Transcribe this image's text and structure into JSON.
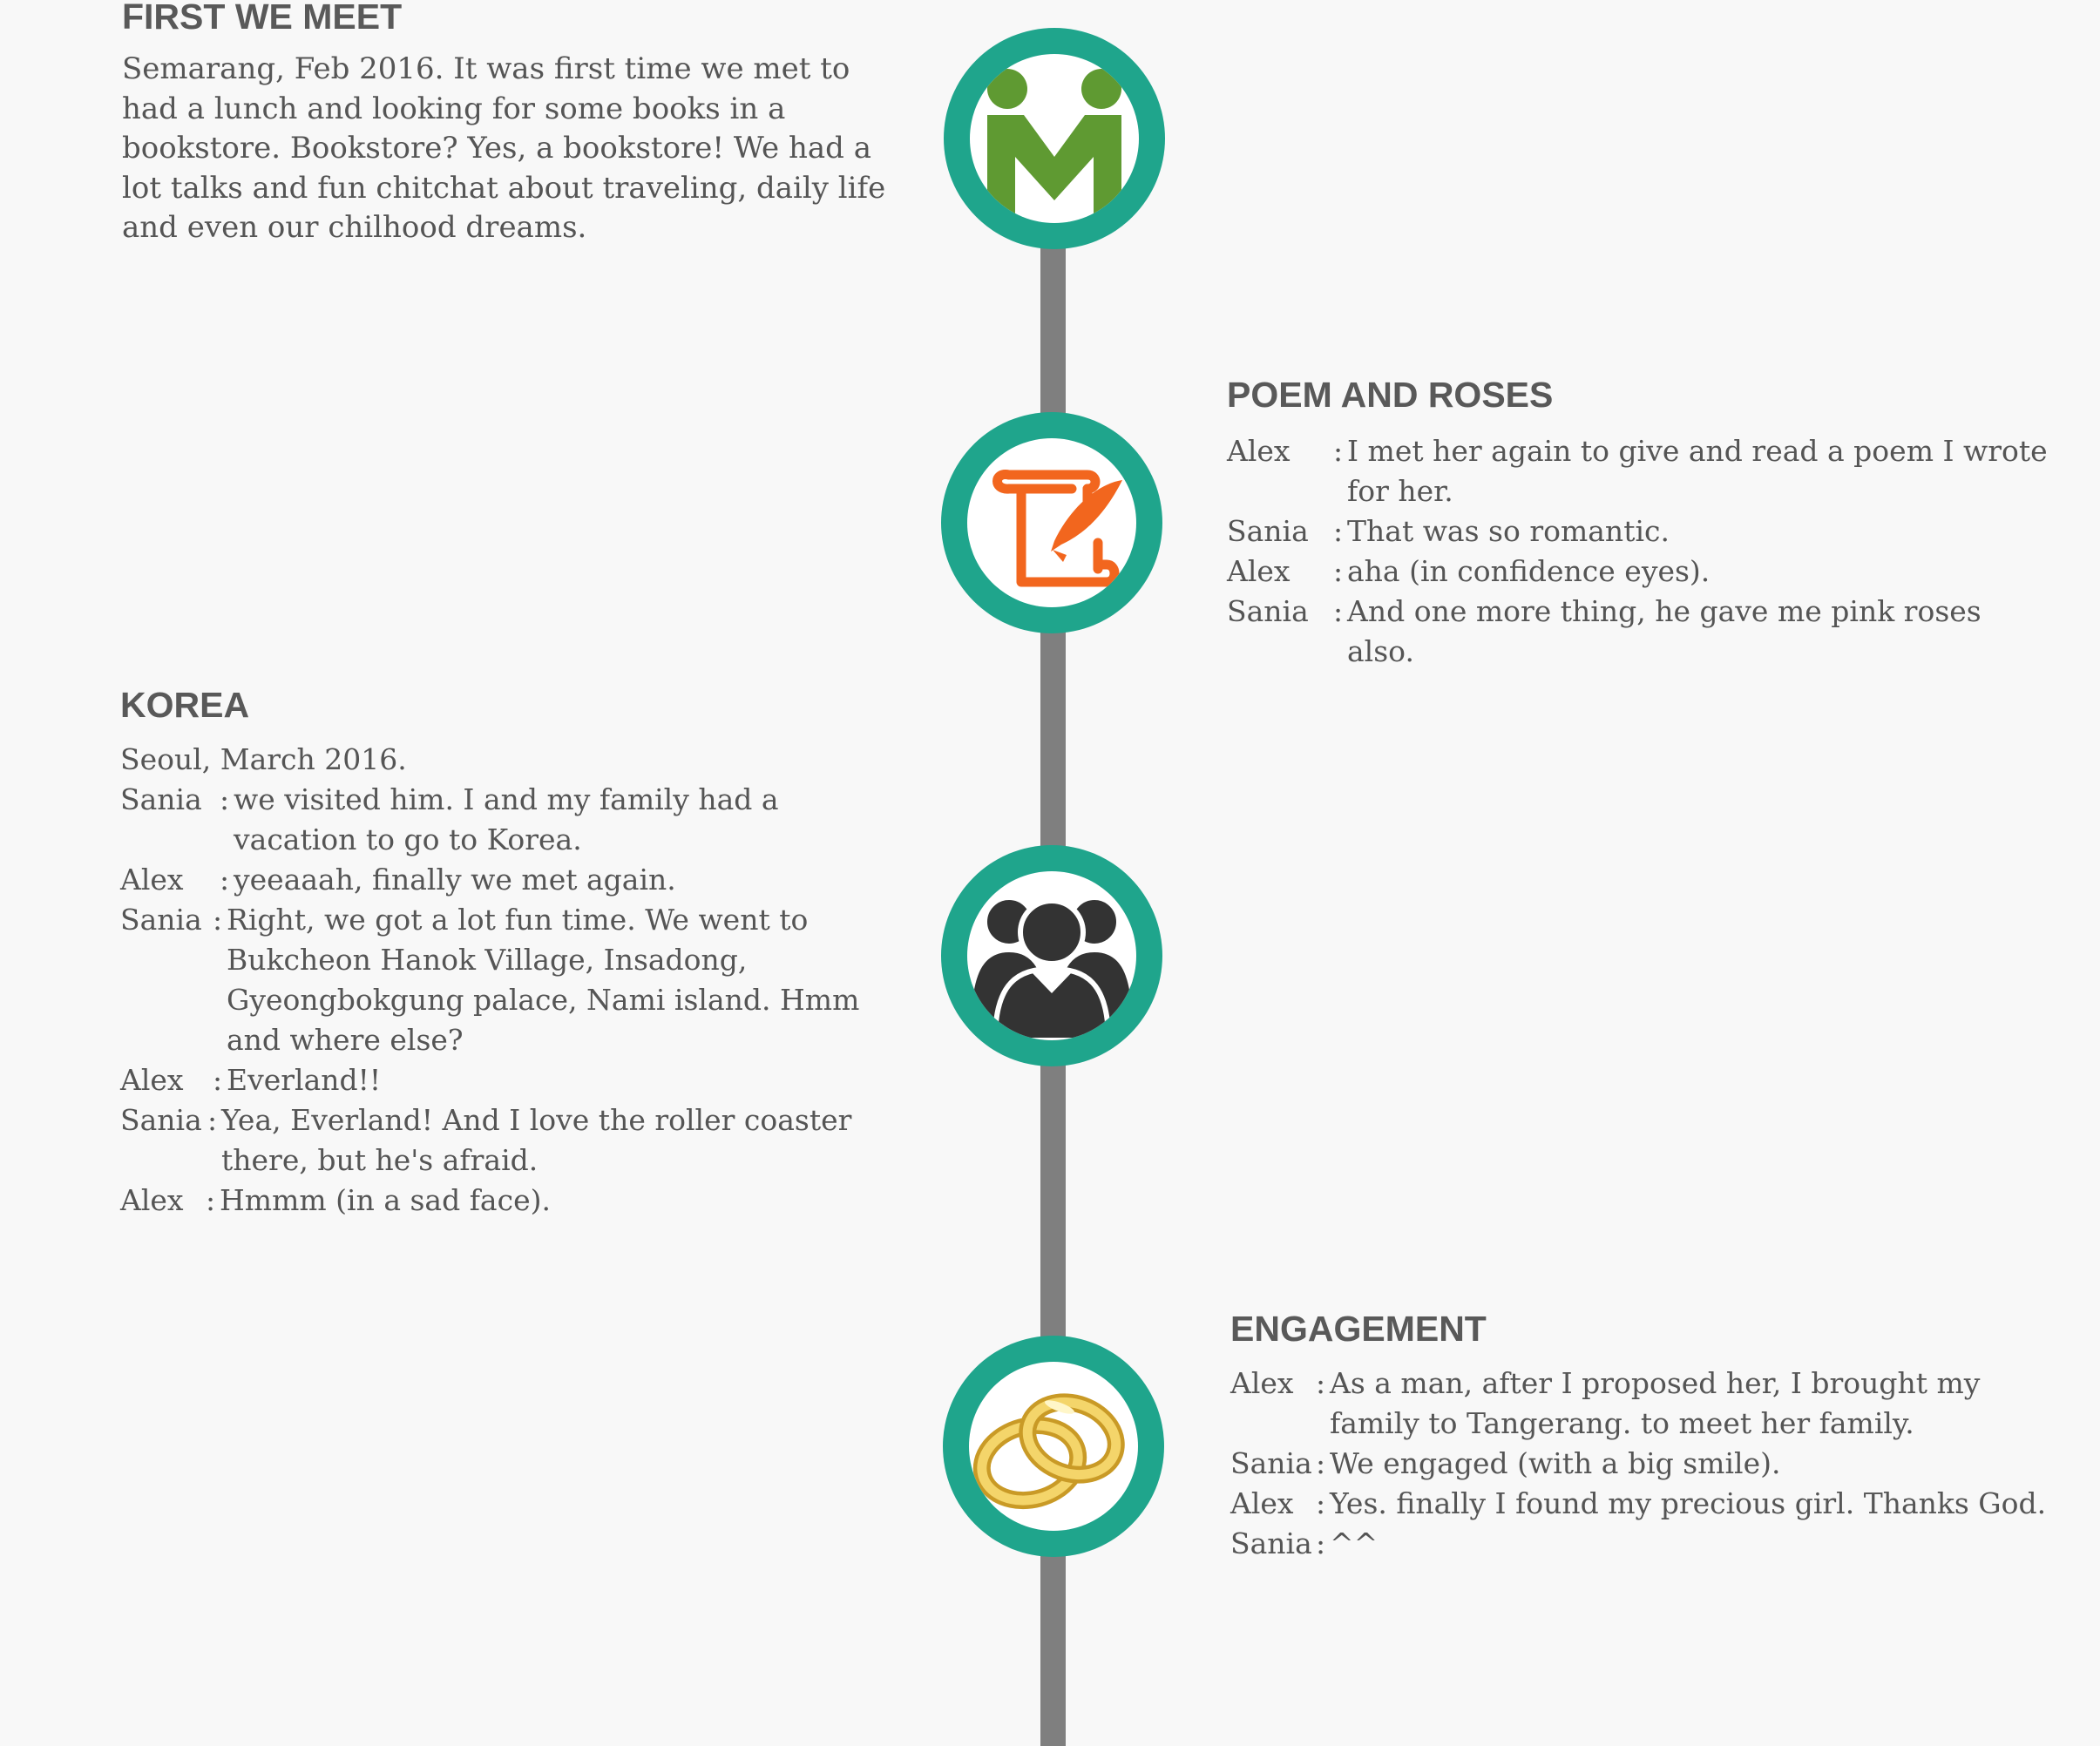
{
  "colors": {
    "background": "#f8f8f8",
    "teal": "#1fa58c",
    "line": "#7f7f7f",
    "green": "#5f9a32",
    "orange": "#f2661e",
    "dark": "#333333",
    "gold": "#e8c14c",
    "heading": "#595959",
    "body_text": "#555555"
  },
  "sections": {
    "first": {
      "icon": "meeting-people-icon",
      "title": "FIRST WE MEET",
      "text": "Semarang, Feb 2016. It was first time we met to had a lunch and looking for some books in a bookstore. Bookstore? Yes, a bookstore! We had a lot talks and fun chitchat about traveling, daily life and even our chilhood dreams."
    },
    "poem": {
      "icon": "scroll-quill-icon",
      "title": "POEM AND ROSES",
      "lines": [
        {
          "speaker": "Alex",
          "text": "I met her again to give and read a poem I wrote for her."
        },
        {
          "speaker": "Sania",
          "text": "That was so romantic."
        },
        {
          "speaker": "Alex",
          "text": "aha (in confidence eyes)."
        },
        {
          "speaker": "Sania",
          "text": "And one more thing, he gave me pink roses also."
        }
      ]
    },
    "korea": {
      "icon": "family-group-icon",
      "title": "KOREA",
      "intro": "Seoul, March 2016.",
      "lines": [
        {
          "speaker": "Sania",
          "text": "we visited him. I and my family had a vacation to go to Korea."
        },
        {
          "speaker": "Alex",
          "text": "yeeaaah, finally we met again."
        },
        {
          "speaker": "Sania",
          "text": "Right, we got a lot fun time. We went to Bukcheon Hanok Village, Insadong, Gyeongbokgung palace, Nami island. Hmm and where else?"
        },
        {
          "speaker": "Alex",
          "text": "Everland!!"
        },
        {
          "speaker": "Sania",
          "text": "Yea, Everland! And I love the roller coaster there, but he's afraid."
        },
        {
          "speaker": "Alex",
          "text": "Hmmm (in a sad face)."
        }
      ]
    },
    "engagement": {
      "icon": "wedding-rings-icon",
      "title": "ENGAGEMENT",
      "lines": [
        {
          "speaker": "Alex",
          "text": "As a man, after I proposed her, I brought my family to Tangerang. to meet her family."
        },
        {
          "speaker": "Sania",
          "text": "We engaged (with a big smile)."
        },
        {
          "speaker": "Alex",
          "text": "Yes. finally I found my precious girl. Thanks God."
        },
        {
          "speaker": "Sania",
          "text": "^^"
        }
      ]
    }
  },
  "separator": ":"
}
